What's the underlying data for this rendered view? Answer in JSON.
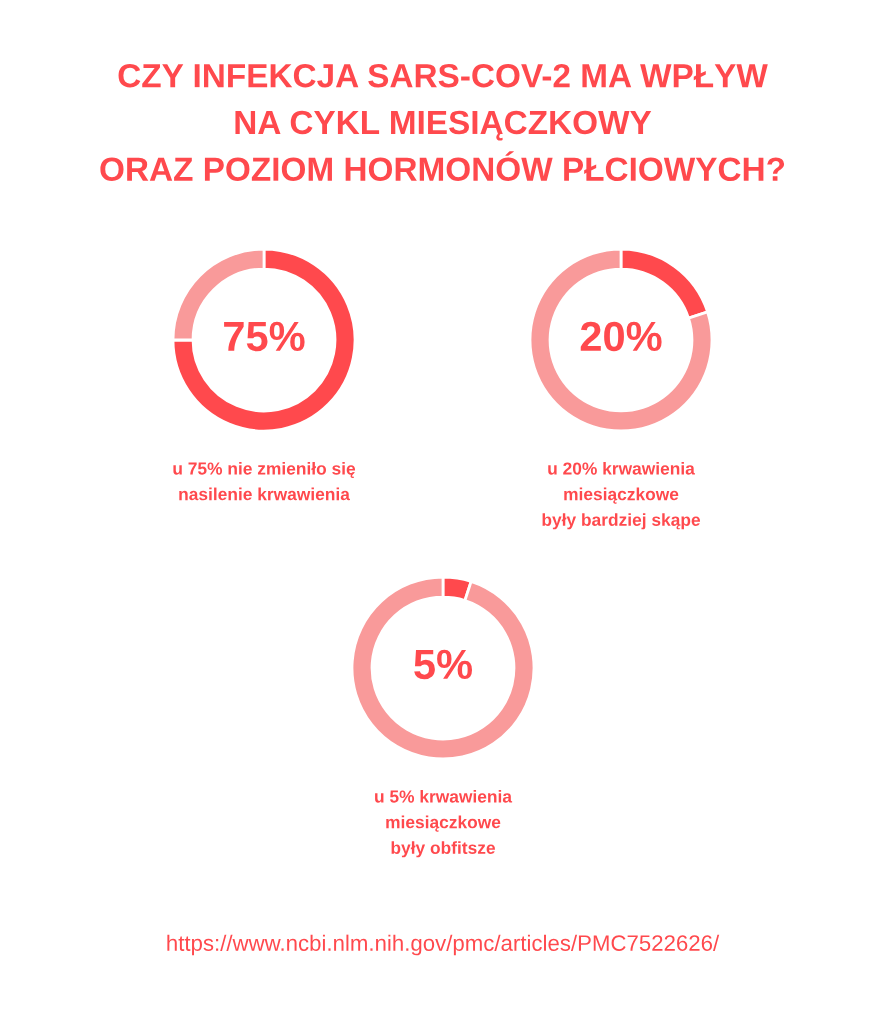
{
  "chart_data": [
    {
      "type": "donut",
      "title": "CZY INFEKCJA SARS-COV-2 MA WPŁYW\nNA CYKL MIESIĄCZKOWY\nORAZ POZIOM HORMONÓW PŁCIOWYCH?",
      "categories": [
        null,
        null
      ],
      "values": [
        75,
        25
      ],
      "colors": [
        "#ff494d",
        "#f99a9a"
      ],
      "value_labels": [
        "75%",
        null
      ],
      "annotations": [
        "u 75% nie zmieniło się\nnasilenie krwawienia"
      ]
    },
    {
      "type": "donut",
      "categories": [
        null,
        null
      ],
      "values": [
        20,
        80
      ],
      "colors": [
        "#ff494d",
        "#f99a9a"
      ],
      "value_labels": [
        "20%",
        null
      ],
      "annotations": [
        "u 20% krwawienia\nmiesiączkowe\nbyły bardziej skąpe"
      ]
    },
    {
      "type": "donut",
      "categories": [
        null,
        null
      ],
      "values": [
        5,
        95
      ],
      "colors": [
        "#ff494d",
        "#f99a9a"
      ],
      "value_labels": [
        "5%",
        null
      ],
      "annotations": [
        "u 5% krwawienia\nmiesiączkowe\nbyły obfitsze",
        "https://www.ncbi.nlm.nih.gov/pmc/articles/PMC7522626/"
      ]
    }
  ]
}
